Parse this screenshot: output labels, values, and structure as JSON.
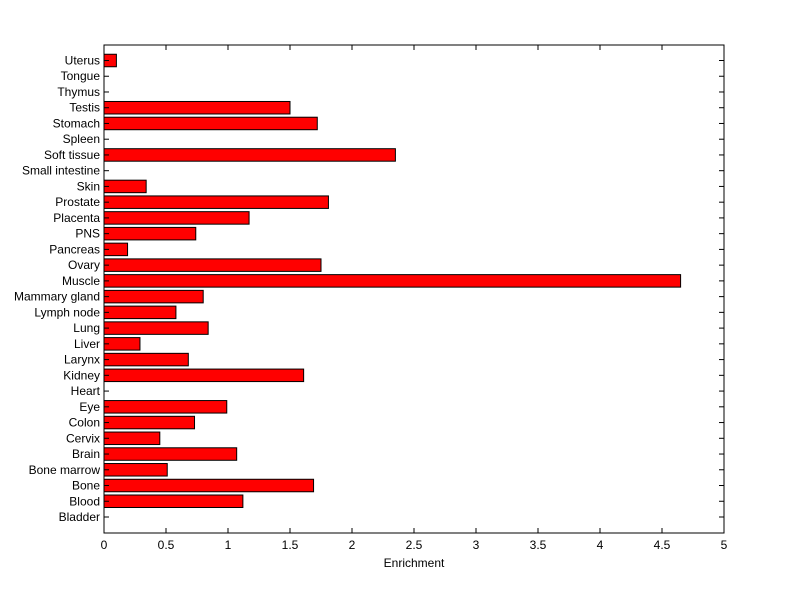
{
  "chart_data": {
    "type": "bar",
    "orientation": "horizontal",
    "title": "",
    "xlabel": "Enrichment",
    "ylabel": "",
    "xlim": [
      0,
      5
    ],
    "x_ticks": [
      "0",
      "0.5",
      "1",
      "1.5",
      "2",
      "2.5",
      "3",
      "3.5",
      "4",
      "4.5",
      "5"
    ],
    "grid": false,
    "bar_color": "#ff0000",
    "bar_edge_color": "#000000",
    "categories": [
      "Uterus",
      "Tongue",
      "Thymus",
      "Testis",
      "Stomach",
      "Spleen",
      "Soft tissue",
      "Small intestine",
      "Skin",
      "Prostate",
      "Placenta",
      "PNS",
      "Pancreas",
      "Ovary",
      "Muscle",
      "Mammary gland",
      "Lymph node",
      "Lung",
      "Liver",
      "Larynx",
      "Kidney",
      "Heart",
      "Eye",
      "Colon",
      "Cervix",
      "Brain",
      "Bone marrow",
      "Bone",
      "Blood",
      "Bladder"
    ],
    "values": [
      0.1,
      0,
      0,
      1.5,
      1.72,
      0,
      2.35,
      0,
      0.34,
      1.81,
      1.17,
      0.74,
      0.19,
      1.75,
      4.65,
      0.8,
      0.58,
      0.84,
      0.29,
      0.68,
      1.61,
      0,
      0.99,
      0.73,
      0.45,
      1.07,
      0.51,
      1.69,
      1.12,
      0
    ]
  }
}
